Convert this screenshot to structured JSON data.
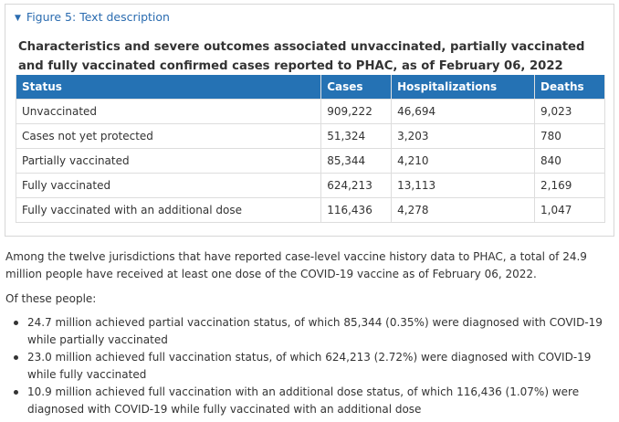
{
  "figure": {
    "summary_label": "Figure 5: Text description",
    "caption": "Characteristics and severe outcomes associated unvaccinated, partially vaccinated and fully vaccinated confirmed cases reported to PHAC, as of February 06, 2022"
  },
  "table": {
    "headers": [
      "Status",
      "Cases",
      "Hospitalizations",
      "Deaths"
    ],
    "rows": [
      [
        "Unvaccinated",
        "909,222",
        "46,694",
        "9,023"
      ],
      [
        "Cases not yet protected",
        "51,324",
        "3,203",
        "780"
      ],
      [
        "Partially vaccinated",
        "85,344",
        "4,210",
        "840"
      ],
      [
        "Fully vaccinated",
        "624,213",
        "13,113",
        "2,169"
      ],
      [
        "Fully vaccinated with an additional dose",
        "116,436",
        "4,278",
        "1,047"
      ]
    ]
  },
  "body": {
    "paragraph1": "Among the twelve jurisdictions that have reported case-level vaccine history data to PHAC, a total of 24.9 million people have received at least one dose of the COVID-19 vaccine as of February 06, 2022.",
    "paragraph2": "Of these people:",
    "bullets": [
      "24.7 million achieved partial vaccination status, of which 85,344 (0.35%) were diagnosed with COVID-19 while partially vaccinated",
      "23.0 million achieved full vaccination status, of which 624,213 (2.72%) were diagnosed with COVID-19 while fully vaccinated",
      "10.9 million achieved full vaccination with an additional dose status, of which 116,436 (1.07%) were diagnosed with COVID-19 while fully vaccinated with an additional dose"
    ]
  },
  "colors": {
    "link": "#2b6cb0",
    "table_header_bg": "#2572b4"
  }
}
